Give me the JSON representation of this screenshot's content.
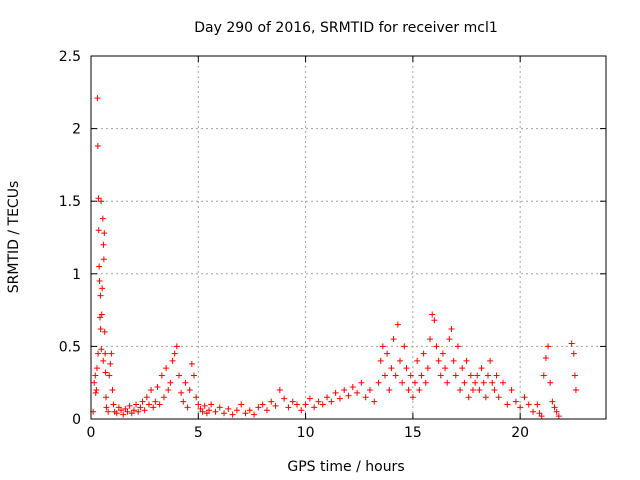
{
  "chart_data": {
    "type": "scatter",
    "title": "Day 290 of 2016, SRMTID for receiver mcl1",
    "xlabel": "GPS time / hours",
    "ylabel": "SRMTID / TECUs",
    "xlim": [
      0,
      24
    ],
    "ylim": [
      0,
      2.5
    ],
    "xticks": [
      0,
      5,
      10,
      15,
      20
    ],
    "yticks": [
      0,
      0.5,
      1,
      1.5,
      2,
      2.5
    ],
    "xtick_labels": [
      "0",
      "5",
      "10",
      "15",
      "20"
    ],
    "ytick_labels": [
      "0",
      "0.5",
      "1",
      "1.5",
      "2",
      "2.5"
    ],
    "grid": true,
    "marker": "+",
    "color": "#ff0000",
    "series": [
      {
        "name": "mcl1",
        "points": [
          [
            0.1,
            0.05
          ],
          [
            0.15,
            0.25
          ],
          [
            0.2,
            0.3
          ],
          [
            0.22,
            0.18
          ],
          [
            0.25,
            0.2
          ],
          [
            0.28,
            0.35
          ],
          [
            0.3,
            2.21
          ],
          [
            0.32,
            1.88
          ],
          [
            0.33,
            0.45
          ],
          [
            0.35,
            1.52
          ],
          [
            0.36,
            1.3
          ],
          [
            0.38,
            1.05
          ],
          [
            0.4,
            0.95
          ],
          [
            0.42,
            0.7
          ],
          [
            0.44,
            0.85
          ],
          [
            0.45,
            0.62
          ],
          [
            0.47,
            1.5
          ],
          [
            0.48,
            0.48
          ],
          [
            0.5,
            0.72
          ],
          [
            0.52,
            0.9
          ],
          [
            0.55,
            1.38
          ],
          [
            0.57,
            0.4
          ],
          [
            0.58,
            1.2
          ],
          [
            0.6,
            1.1
          ],
          [
            0.62,
            1.28
          ],
          [
            0.64,
            0.6
          ],
          [
            0.66,
            0.45
          ],
          [
            0.68,
            0.32
          ],
          [
            0.7,
            0.15
          ],
          [
            0.72,
            0.08
          ],
          [
            0.8,
            0.05
          ],
          [
            0.85,
            0.3
          ],
          [
            0.9,
            0.38
          ],
          [
            0.95,
            0.45
          ],
          [
            1.0,
            0.2
          ],
          [
            1.05,
            0.1
          ],
          [
            1.1,
            0.05
          ],
          [
            1.2,
            0.04
          ],
          [
            1.3,
            0.08
          ],
          [
            1.4,
            0.06
          ],
          [
            1.5,
            0.03
          ],
          [
            1.6,
            0.07
          ],
          [
            1.7,
            0.05
          ],
          [
            1.8,
            0.09
          ],
          [
            1.9,
            0.04
          ],
          [
            2.0,
            0.06
          ],
          [
            2.1,
            0.1
          ],
          [
            2.2,
            0.05
          ],
          [
            2.3,
            0.08
          ],
          [
            2.4,
            0.12
          ],
          [
            2.5,
            0.06
          ],
          [
            2.6,
            0.15
          ],
          [
            2.7,
            0.1
          ],
          [
            2.8,
            0.2
          ],
          [
            2.9,
            0.08
          ],
          [
            3.0,
            0.12
          ],
          [
            3.1,
            0.22
          ],
          [
            3.2,
            0.1
          ],
          [
            3.3,
            0.3
          ],
          [
            3.4,
            0.15
          ],
          [
            3.5,
            0.35
          ],
          [
            3.6,
            0.2
          ],
          [
            3.7,
            0.25
          ],
          [
            3.8,
            0.4
          ],
          [
            3.9,
            0.45
          ],
          [
            4.0,
            0.5
          ],
          [
            4.1,
            0.3
          ],
          [
            4.2,
            0.18
          ],
          [
            4.3,
            0.12
          ],
          [
            4.4,
            0.25
          ],
          [
            4.5,
            0.08
          ],
          [
            4.6,
            0.2
          ],
          [
            4.7,
            0.38
          ],
          [
            4.8,
            0.3
          ],
          [
            4.9,
            0.15
          ],
          [
            5.0,
            0.1
          ],
          [
            5.1,
            0.07
          ],
          [
            5.2,
            0.05
          ],
          [
            5.3,
            0.09
          ],
          [
            5.4,
            0.04
          ],
          [
            5.5,
            0.06
          ],
          [
            5.6,
            0.1
          ],
          [
            5.8,
            0.05
          ],
          [
            6.0,
            0.08
          ],
          [
            6.2,
            0.04
          ],
          [
            6.4,
            0.07
          ],
          [
            6.6,
            0.03
          ],
          [
            6.8,
            0.06
          ],
          [
            7.0,
            0.1
          ],
          [
            7.2,
            0.04
          ],
          [
            7.4,
            0.06
          ],
          [
            7.6,
            0.03
          ],
          [
            7.8,
            0.08
          ],
          [
            8.0,
            0.1
          ],
          [
            8.2,
            0.06
          ],
          [
            8.4,
            0.12
          ],
          [
            8.6,
            0.09
          ],
          [
            8.8,
            0.2
          ],
          [
            9.0,
            0.14
          ],
          [
            9.2,
            0.08
          ],
          [
            9.4,
            0.12
          ],
          [
            9.6,
            0.1
          ],
          [
            9.8,
            0.06
          ],
          [
            10.0,
            0.1
          ],
          [
            10.2,
            0.14
          ],
          [
            10.4,
            0.08
          ],
          [
            10.6,
            0.12
          ],
          [
            10.8,
            0.1
          ],
          [
            11.0,
            0.15
          ],
          [
            11.2,
            0.12
          ],
          [
            11.4,
            0.18
          ],
          [
            11.6,
            0.14
          ],
          [
            11.8,
            0.2
          ],
          [
            12.0,
            0.16
          ],
          [
            12.2,
            0.22
          ],
          [
            12.4,
            0.18
          ],
          [
            12.6,
            0.25
          ],
          [
            12.8,
            0.15
          ],
          [
            13.0,
            0.2
          ],
          [
            13.2,
            0.12
          ],
          [
            13.4,
            0.25
          ],
          [
            13.5,
            0.4
          ],
          [
            13.6,
            0.5
          ],
          [
            13.7,
            0.3
          ],
          [
            13.8,
            0.45
          ],
          [
            13.9,
            0.2
          ],
          [
            14.0,
            0.35
          ],
          [
            14.1,
            0.55
          ],
          [
            14.2,
            0.3
          ],
          [
            14.3,
            0.65
          ],
          [
            14.4,
            0.4
          ],
          [
            14.5,
            0.25
          ],
          [
            14.6,
            0.5
          ],
          [
            14.7,
            0.35
          ],
          [
            14.8,
            0.2
          ],
          [
            14.9,
            0.3
          ],
          [
            15.0,
            0.15
          ],
          [
            15.1,
            0.25
          ],
          [
            15.2,
            0.4
          ],
          [
            15.3,
            0.2
          ],
          [
            15.4,
            0.3
          ],
          [
            15.5,
            0.45
          ],
          [
            15.6,
            0.25
          ],
          [
            15.7,
            0.35
          ],
          [
            15.8,
            0.55
          ],
          [
            15.9,
            0.72
          ],
          [
            16.0,
            0.68
          ],
          [
            16.1,
            0.5
          ],
          [
            16.2,
            0.4
          ],
          [
            16.3,
            0.3
          ],
          [
            16.4,
            0.45
          ],
          [
            16.5,
            0.35
          ],
          [
            16.6,
            0.25
          ],
          [
            16.7,
            0.55
          ],
          [
            16.8,
            0.62
          ],
          [
            16.9,
            0.4
          ],
          [
            17.0,
            0.3
          ],
          [
            17.1,
            0.5
          ],
          [
            17.2,
            0.2
          ],
          [
            17.3,
            0.35
          ],
          [
            17.4,
            0.25
          ],
          [
            17.5,
            0.4
          ],
          [
            17.6,
            0.15
          ],
          [
            17.7,
            0.3
          ],
          [
            17.8,
            0.2
          ],
          [
            17.9,
            0.25
          ],
          [
            18.0,
            0.3
          ],
          [
            18.1,
            0.2
          ],
          [
            18.2,
            0.35
          ],
          [
            18.3,
            0.25
          ],
          [
            18.4,
            0.15
          ],
          [
            18.5,
            0.3
          ],
          [
            18.6,
            0.4
          ],
          [
            18.7,
            0.25
          ],
          [
            18.8,
            0.2
          ],
          [
            18.9,
            0.3
          ],
          [
            19.0,
            0.15
          ],
          [
            19.2,
            0.25
          ],
          [
            19.4,
            0.1
          ],
          [
            19.6,
            0.2
          ],
          [
            19.8,
            0.12
          ],
          [
            20.0,
            0.08
          ],
          [
            20.2,
            0.15
          ],
          [
            20.4,
            0.1
          ],
          [
            20.6,
            0.05
          ],
          [
            20.8,
            0.1
          ],
          [
            20.9,
            0.04
          ],
          [
            21.0,
            0.02
          ],
          [
            21.1,
            0.3
          ],
          [
            21.2,
            0.42
          ],
          [
            21.3,
            0.5
          ],
          [
            21.4,
            0.25
          ],
          [
            21.5,
            0.12
          ],
          [
            21.6,
            0.08
          ],
          [
            21.7,
            0.05
          ],
          [
            21.8,
            0.02
          ],
          [
            22.4,
            0.52
          ],
          [
            22.5,
            0.45
          ],
          [
            22.55,
            0.3
          ],
          [
            22.6,
            0.2
          ]
        ]
      }
    ]
  }
}
